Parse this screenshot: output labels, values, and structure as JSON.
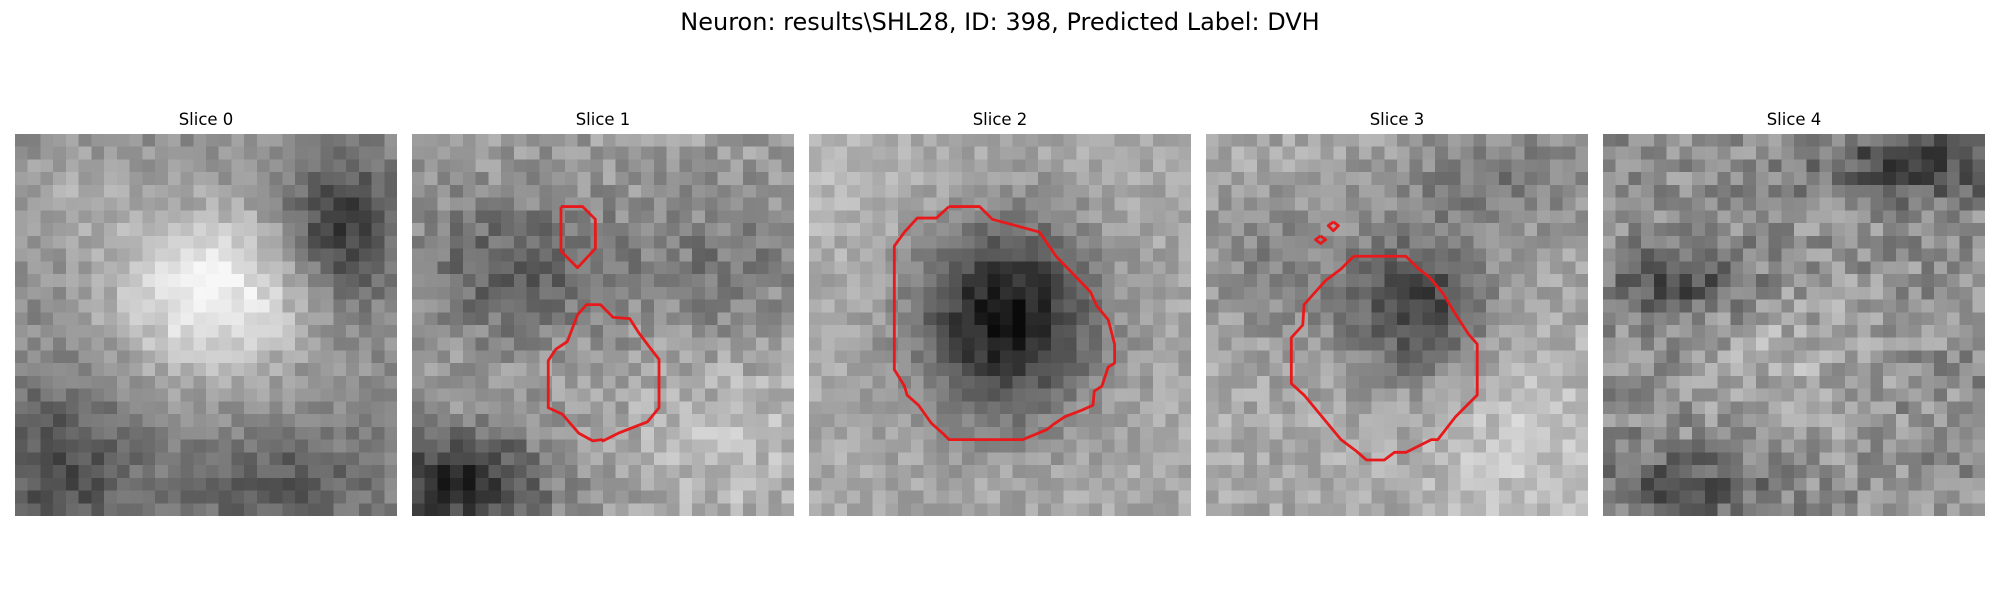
{
  "figure": {
    "suptitle": "Neuron: results\\SHL28, ID: 398, Predicted Label: DVH"
  },
  "contour_color": "#e8191b",
  "slices": [
    {
      "title": "Slice 0",
      "tone": "bright-center-dark-edges"
    },
    {
      "title": "Slice 1",
      "tone": "medium-gray-dark-lower-left"
    },
    {
      "title": "Slice 2",
      "tone": "dark-center-blob"
    },
    {
      "title": "Slice 3",
      "tone": "dark-upper-right-blob"
    },
    {
      "title": "Slice 4",
      "tone": "noisy-gray"
    }
  ]
}
